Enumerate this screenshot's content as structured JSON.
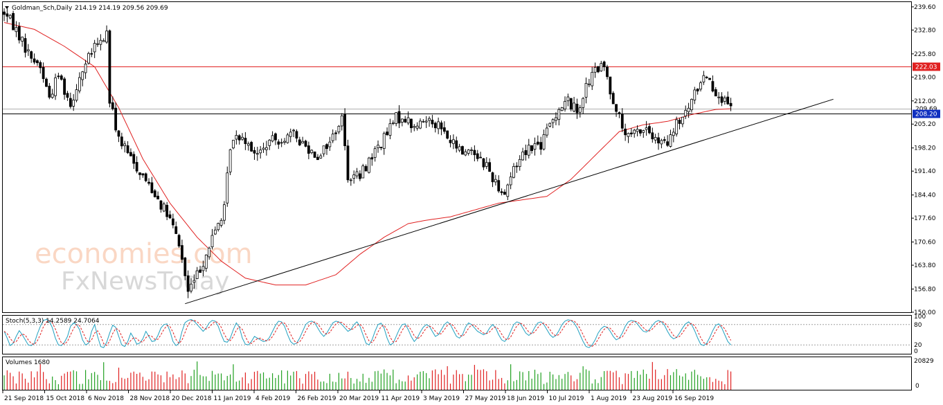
{
  "chart_data": {
    "type": "candlestick",
    "header": {
      "symbol": "Goldman_Sch,Daily",
      "ohlc": "214.19 214.19 209.56 209.69"
    },
    "price_axis": {
      "ylim": [
        150,
        241
      ],
      "ticks": [
        "239.60",
        "232.80",
        "225.80",
        "219.00",
        "212.00",
        "205.20",
        "198.20",
        "191.40",
        "184.40",
        "177.60",
        "170.60",
        "163.80",
        "156.80",
        "150.00"
      ]
    },
    "time_axis": {
      "labels": [
        "21 Sep 2018",
        "15 Oct 2018",
        "6 Nov 2018",
        "28 Nov 2018",
        "20 Dec 2018",
        "11 Jan 2019",
        "4 Feb 2019",
        "26 Feb 2019",
        "20 Mar 2019",
        "11 Apr 2019",
        "3 May 2019",
        "27 May 2019",
        "18 Jun 2019",
        "10 Jul 2019",
        "1 Aug 2019",
        "23 Aug 2019",
        "16 Sep 2019"
      ]
    },
    "horizontal_lines": [
      {
        "value": 222.03,
        "label": "222.03",
        "color": "#e02020"
      },
      {
        "value": 208.2,
        "label": "208.20",
        "color": "#000000"
      }
    ],
    "current_price": {
      "value": 209.69,
      "label": "209.69"
    },
    "trendline": {
      "from": {
        "bar": 60,
        "price": 152.5
      },
      "to": {
        "bar": 275,
        "price": 212.5
      }
    },
    "price_path": [
      [
        0,
        238
      ],
      [
        4,
        233
      ],
      [
        8,
        226
      ],
      [
        12,
        222
      ],
      [
        15,
        213
      ],
      [
        18,
        220
      ],
      [
        22,
        211
      ],
      [
        25,
        219
      ],
      [
        30,
        228
      ],
      [
        32,
        229
      ],
      [
        34,
        232
      ],
      [
        35,
        212
      ],
      [
        38,
        201
      ],
      [
        42,
        195
      ],
      [
        46,
        190
      ],
      [
        50,
        185
      ],
      [
        55,
        177
      ],
      [
        58,
        170
      ],
      [
        61,
        156
      ],
      [
        64,
        161
      ],
      [
        67,
        167
      ],
      [
        70,
        174
      ],
      [
        73,
        180
      ],
      [
        75,
        199
      ],
      [
        78,
        202
      ],
      [
        80,
        201
      ],
      [
        84,
        196
      ],
      [
        88,
        200
      ],
      [
        92,
        201
      ],
      [
        96,
        202
      ],
      [
        101,
        198
      ],
      [
        104,
        196
      ],
      [
        108,
        200
      ],
      [
        112,
        207
      ],
      [
        114,
        190
      ],
      [
        118,
        190
      ],
      [
        122,
        196
      ],
      [
        126,
        201
      ],
      [
        130,
        207
      ],
      [
        133,
        207
      ],
      [
        136,
        204
      ],
      [
        139,
        206
      ],
      [
        141,
        207
      ],
      [
        144,
        205
      ],
      [
        148,
        200
      ],
      [
        152,
        197
      ],
      [
        155,
        198
      ],
      [
        157,
        196
      ],
      [
        160,
        193
      ],
      [
        163,
        188
      ],
      [
        166,
        185
      ],
      [
        168,
        190
      ],
      [
        172,
        197
      ],
      [
        175,
        199
      ],
      [
        178,
        199
      ],
      [
        181,
        205
      ],
      [
        184,
        210
      ],
      [
        187,
        212
      ],
      [
        190,
        209
      ],
      [
        193,
        216
      ],
      [
        196,
        221
      ],
      [
        199,
        222
      ],
      [
        201,
        215
      ],
      [
        203,
        210
      ],
      [
        205,
        204
      ],
      [
        207,
        201
      ],
      [
        210,
        203
      ],
      [
        213,
        204
      ],
      [
        216,
        200
      ],
      [
        220,
        199
      ],
      [
        223,
        205
      ],
      [
        226,
        208
      ],
      [
        229,
        214
      ],
      [
        231,
        218
      ],
      [
        233,
        220
      ],
      [
        235,
        216
      ],
      [
        237,
        214
      ],
      [
        240,
        210
      ],
      [
        241,
        209.7
      ]
    ],
    "ma_path": [
      [
        0,
        235
      ],
      [
        10,
        233
      ],
      [
        20,
        228
      ],
      [
        30,
        222
      ],
      [
        38,
        210
      ],
      [
        46,
        195
      ],
      [
        55,
        182
      ],
      [
        64,
        172
      ],
      [
        72,
        165
      ],
      [
        80,
        160
      ],
      [
        90,
        158
      ],
      [
        100,
        158
      ],
      [
        110,
        161
      ],
      [
        118,
        167
      ],
      [
        126,
        172
      ],
      [
        134,
        176
      ],
      [
        140,
        177
      ],
      [
        148,
        178
      ],
      [
        156,
        180
      ],
      [
        164,
        182
      ],
      [
        172,
        183
      ],
      [
        180,
        184
      ],
      [
        188,
        189
      ],
      [
        196,
        196
      ],
      [
        204,
        203
      ],
      [
        212,
        205
      ],
      [
        220,
        206
      ],
      [
        228,
        208
      ],
      [
        236,
        209.5
      ],
      [
        241,
        209.7
      ]
    ],
    "stochastic": {
      "label": "Stoch(5,3,3) 14.2589 24.7064",
      "levels": [
        "100",
        "80",
        "20",
        "0"
      ],
      "main_color": "#20a0c0",
      "signal_color": "#e02020",
      "ylim": [
        0,
        100
      ],
      "values": [
        60,
        40,
        18,
        25,
        45,
        62,
        50,
        35,
        20,
        18,
        25,
        52,
        75,
        92,
        95,
        90,
        70,
        40,
        20,
        18,
        28,
        45,
        75,
        85,
        80,
        65,
        35,
        20,
        25,
        60,
        80,
        45,
        15,
        12,
        28,
        55,
        78,
        72,
        45,
        20,
        15,
        30,
        55,
        40,
        22,
        26,
        38,
        60,
        45,
        30,
        32,
        48,
        70,
        80,
        82,
        60,
        30,
        18,
        25,
        60,
        86,
        92,
        95,
        90,
        80,
        70,
        60,
        70,
        85,
        92,
        90,
        75,
        50,
        30,
        28,
        40,
        65,
        85,
        72,
        40,
        22,
        20,
        30,
        45,
        40,
        35,
        30,
        32,
        42,
        60,
        78,
        90,
        88,
        75,
        50,
        30,
        22,
        25,
        40,
        60,
        80,
        88,
        90,
        85,
        70,
        55,
        45,
        55,
        70,
        85,
        90,
        88,
        80,
        70,
        60,
        65,
        80,
        88,
        75,
        50,
        25,
        20,
        35,
        60,
        80,
        84,
        70,
        40,
        20,
        25,
        45,
        65,
        80,
        82,
        65,
        45,
        30,
        40,
        58,
        72,
        80,
        75,
        60,
        45,
        50,
        65,
        80,
        88,
        80,
        62,
        45,
        40,
        50,
        72,
        85,
        80,
        70,
        60,
        55,
        50,
        55,
        70,
        80,
        70,
        50,
        35,
        30,
        40,
        60,
        80,
        88,
        85,
        70,
        55,
        48,
        55,
        72,
        85,
        88,
        80,
        65,
        50,
        42,
        48,
        62,
        80,
        90,
        94,
        92,
        85,
        70,
        50,
        30,
        15,
        12,
        20,
        35,
        55,
        68,
        75,
        72,
        60,
        45,
        35,
        40,
        55,
        75,
        88,
        92,
        90,
        82,
        70,
        60,
        58,
        65,
        78,
        88,
        92,
        88,
        78,
        60,
        45,
        38,
        42,
        55,
        70,
        82,
        88,
        80,
        62,
        40,
        22,
        18,
        25,
        42,
        62,
        78,
        82,
        70,
        50,
        30,
        20,
        18,
        28,
        50,
        70,
        78,
        72,
        55,
        35,
        22,
        20,
        30,
        50,
        68,
        75,
        70,
        60,
        50,
        55,
        70,
        82,
        88,
        86,
        80,
        72,
        60,
        45,
        30,
        20,
        14,
        12
      ]
    },
    "volume": {
      "label": "Volumes 1680",
      "scale_labels": [
        "20829",
        "0"
      ],
      "up_color": "#20a020",
      "down_color": "#e02020"
    }
  }
}
